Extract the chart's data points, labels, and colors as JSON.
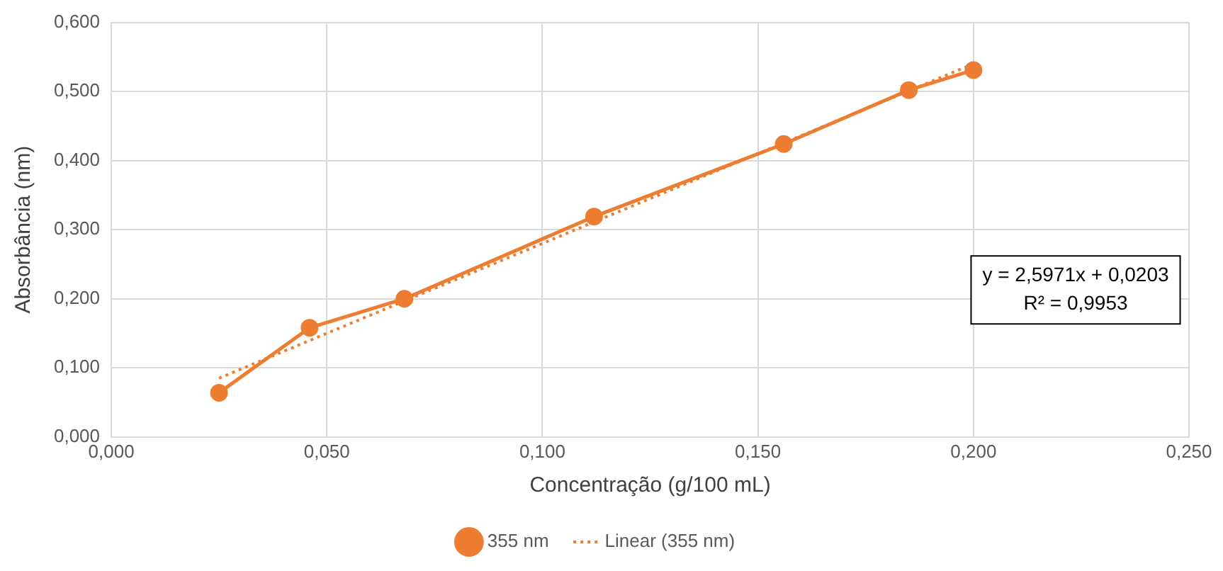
{
  "chart_data": {
    "type": "scatter",
    "xlabel": "Concentração (g/100 mL)",
    "ylabel": "Absorbância (nm)",
    "xlim": [
      0,
      0.25
    ],
    "ylim": [
      0,
      0.6
    ],
    "xticks": [
      {
        "value": 0,
        "label": "0,000"
      },
      {
        "value": 0.05,
        "label": "0,050"
      },
      {
        "value": 0.1,
        "label": "0,100"
      },
      {
        "value": 0.15,
        "label": "0,150"
      },
      {
        "value": 0.2,
        "label": "0,200"
      },
      {
        "value": 0.25,
        "label": "0,250"
      }
    ],
    "yticks": [
      {
        "value": 0,
        "label": "0,000"
      },
      {
        "value": 0.1,
        "label": "0,100"
      },
      {
        "value": 0.2,
        "label": "0,200"
      },
      {
        "value": 0.3,
        "label": "0,300"
      },
      {
        "value": 0.4,
        "label": "0,400"
      },
      {
        "value": 0.5,
        "label": "0,500"
      },
      {
        "value": 0.6,
        "label": "0,600"
      }
    ],
    "grid": true,
    "legend": "bottom",
    "series": [
      {
        "name": "355 nm",
        "type": "line",
        "color": "#ed7d31",
        "marker": "circle",
        "line_style": "solid",
        "x": [
          0.025,
          0.046,
          0.068,
          0.112,
          0.156,
          0.185,
          0.2
        ],
        "values": [
          0.064,
          0.158,
          0.2,
          0.319,
          0.424,
          0.502,
          0.531
        ]
      },
      {
        "name": "Linear (355 nm)",
        "type": "line",
        "color": "#ed7d31",
        "marker": "none",
        "line_style": "dotted",
        "x": [
          0.025,
          0.2
        ],
        "values": [
          0.085,
          0.54
        ]
      }
    ],
    "annotations": [
      "y = 2,5971x + 0,0203",
      "R² = 0,9953"
    ]
  }
}
